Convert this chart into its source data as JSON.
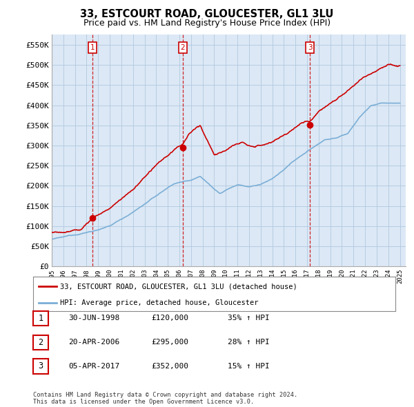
{
  "title": "33, ESTCOURT ROAD, GLOUCESTER, GL1 3LU",
  "subtitle": "Price paid vs. HM Land Registry's House Price Index (HPI)",
  "ylim": [
    0,
    575000
  ],
  "yticks": [
    0,
    50000,
    100000,
    150000,
    200000,
    250000,
    300000,
    350000,
    400000,
    450000,
    500000,
    550000
  ],
  "ytick_labels": [
    "£0",
    "£50K",
    "£100K",
    "£150K",
    "£200K",
    "£250K",
    "£300K",
    "£350K",
    "£400K",
    "£450K",
    "£500K",
    "£550K"
  ],
  "sale_color": "#cc0000",
  "hpi_color": "#7aaed6",
  "plot_bg_color": "#dce8f5",
  "sale_years": [
    1998.5,
    2006.3,
    2017.25
  ],
  "sale_prices": [
    120000,
    295000,
    352000
  ],
  "sale_labels": [
    "1",
    "2",
    "3"
  ],
  "legend_sale_label": "33, ESTCOURT ROAD, GLOUCESTER, GL1 3LU (detached house)",
  "legend_hpi_label": "HPI: Average price, detached house, Gloucester",
  "table_rows": [
    {
      "num": "1",
      "date": "30-JUN-1998",
      "price": "£120,000",
      "change": "35% ↑ HPI"
    },
    {
      "num": "2",
      "date": "20-APR-2006",
      "price": "£295,000",
      "change": "28% ↑ HPI"
    },
    {
      "num": "3",
      "date": "05-APR-2017",
      "price": "£352,000",
      "change": "15% ↑ HPI"
    }
  ],
  "footnote": "Contains HM Land Registry data © Crown copyright and database right 2024.\nThis data is licensed under the Open Government Licence v3.0.",
  "background_color": "#ffffff",
  "grid_color": "#b0c8e0",
  "title_fontsize": 10.5,
  "subtitle_fontsize": 9,
  "axis_fontsize": 8,
  "hpi_anchors_x": [
    1995.0,
    1996.0,
    1997.0,
    1998.5,
    2000.0,
    2002.0,
    2004.0,
    2005.5,
    2007.0,
    2007.8,
    2009.0,
    2009.5,
    2010.5,
    2011.0,
    2012.0,
    2013.0,
    2014.0,
    2015.0,
    2016.0,
    2017.5,
    2018.5,
    2019.5,
    2020.5,
    2021.5,
    2022.5,
    2023.5,
    2024.5
  ],
  "hpi_anchors_y": [
    68000,
    72000,
    78000,
    88000,
    100000,
    135000,
    175000,
    205000,
    215000,
    225000,
    195000,
    185000,
    200000,
    205000,
    200000,
    205000,
    220000,
    240000,
    265000,
    295000,
    315000,
    320000,
    330000,
    370000,
    400000,
    405000,
    405000
  ],
  "sale_anchors_x": [
    1995.0,
    1996.5,
    1997.5,
    1998.5,
    2000.0,
    2002.0,
    2003.5,
    2005.0,
    2005.8,
    2006.3,
    2006.8,
    2007.3,
    2007.8,
    2008.3,
    2009.0,
    2009.8,
    2010.5,
    2011.5,
    2012.5,
    2013.5,
    2014.5,
    2015.5,
    2016.5,
    2017.0,
    2017.25,
    2018.0,
    2019.0,
    2020.0,
    2021.0,
    2022.0,
    2023.0,
    2024.0,
    2024.8
  ],
  "sale_anchors_y": [
    85000,
    87000,
    92000,
    120000,
    145000,
    190000,
    235000,
    270000,
    290000,
    295000,
    320000,
    330000,
    340000,
    310000,
    270000,
    275000,
    290000,
    295000,
    285000,
    295000,
    310000,
    325000,
    345000,
    350000,
    352000,
    380000,
    400000,
    420000,
    440000,
    460000,
    480000,
    500000,
    498000
  ]
}
